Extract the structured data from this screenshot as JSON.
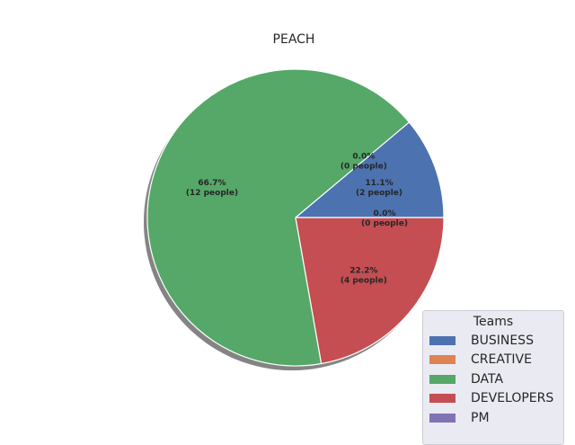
{
  "chart_data": {
    "type": "pie",
    "title": "PEACH",
    "categories": [
      "BUSINESS",
      "CREATIVE",
      "DATA",
      "DEVELOPERS",
      "PM"
    ],
    "values": [
      2,
      0,
      12,
      4,
      0
    ],
    "percent_labels": [
      "11.1%",
      "0.0%",
      "66.7%",
      "22.2%",
      "0.0%"
    ],
    "count_labels": [
      "(2 people)",
      "(0 people)",
      "(12 people)",
      "(4 people)",
      "(0 people)"
    ],
    "colors": [
      "#4c72b0",
      "#dd8452",
      "#55a868",
      "#c44e52",
      "#8172b3"
    ],
    "start_angle_deg": 0,
    "direction": "counterclockwise",
    "shadow": true,
    "legend": {
      "title": "Teams",
      "placement": "bottom-right"
    }
  }
}
